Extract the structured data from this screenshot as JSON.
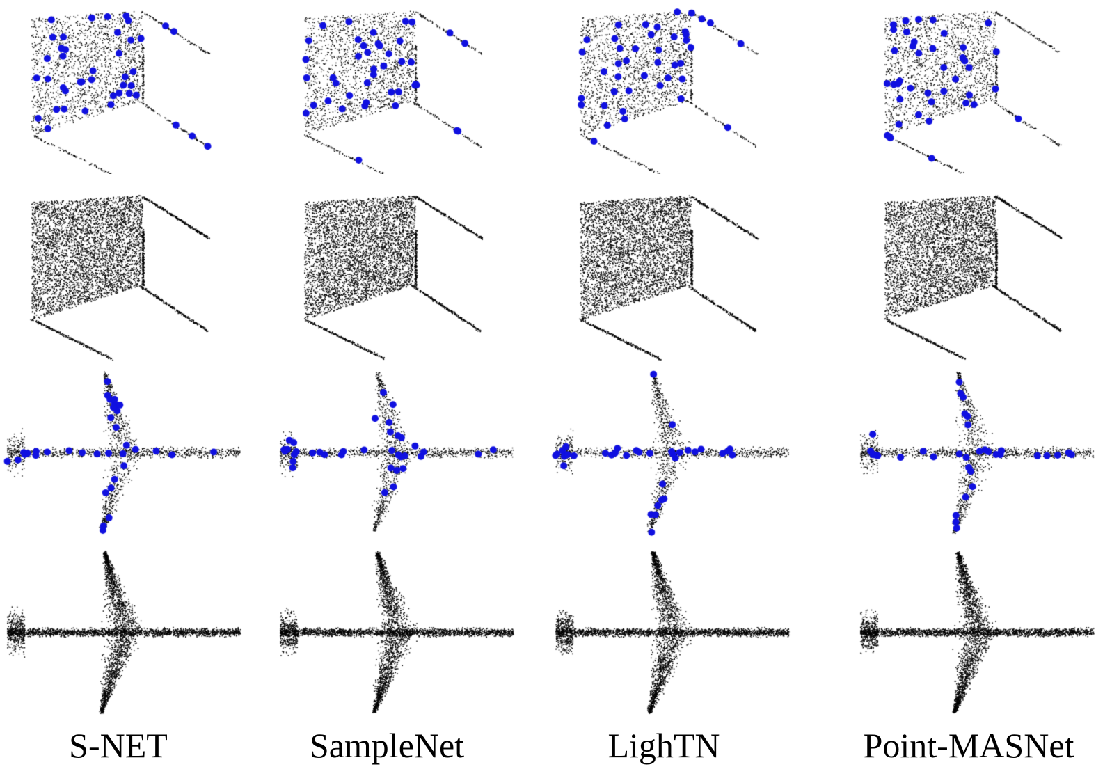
{
  "figure": {
    "methods": [
      "S-NET",
      "SampleNet",
      "LighTN",
      "Point-MASNet"
    ],
    "rows": [
      {
        "object": "chair",
        "view": "sampled points highlighted"
      },
      {
        "object": "chair",
        "view": "reconstructed point cloud"
      },
      {
        "object": "airplane",
        "view": "sampled points highlighted"
      },
      {
        "object": "airplane",
        "view": "reconstructed point cloud"
      }
    ],
    "colors": {
      "points": "#000000",
      "sampled_points": "#1010e0",
      "background": "#ffffff"
    }
  }
}
